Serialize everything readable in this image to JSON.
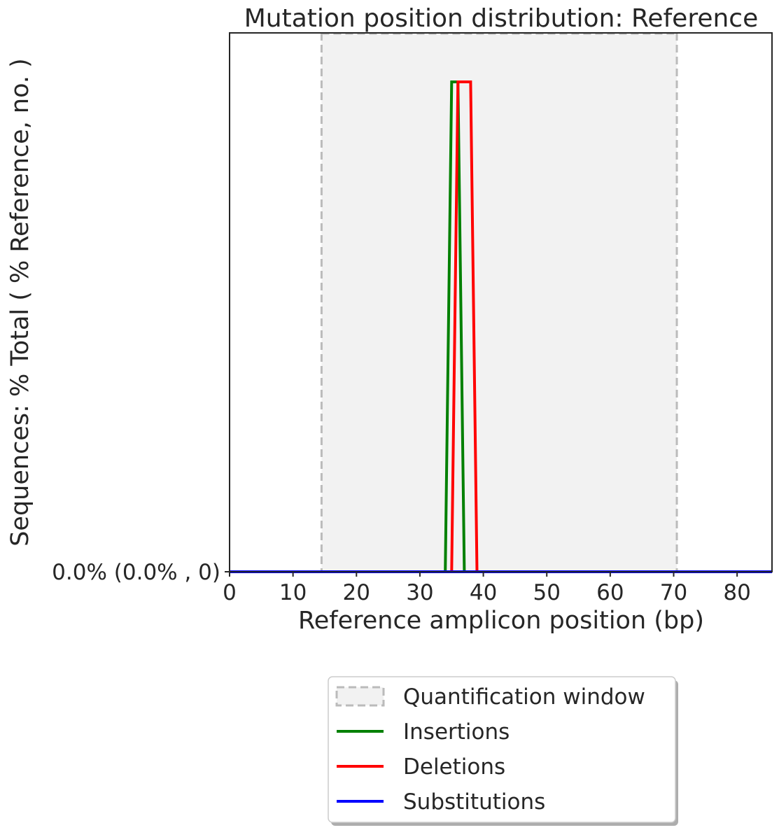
{
  "chart_data": {
    "type": "line",
    "title": "Mutation position distribution: Reference",
    "xlabel": "Reference amplicon position (bp)",
    "ylabel": "Sequences: % Total ( % Reference, no. )",
    "xlim": [
      0,
      85.5
    ],
    "ylim": [
      0,
      1.1
    ],
    "x_ticks": [
      0,
      10,
      20,
      30,
      40,
      50,
      60,
      70,
      80
    ],
    "y_ticks": [
      {
        "value": 0,
        "label": "0.0% (0.0% , 0)"
      }
    ],
    "grid": false,
    "legend_position": "bottom-center",
    "quantification_window": {
      "name": "Quantification window",
      "x_start": 14.5,
      "x_end": 70.5,
      "edge_color": "#bbbbbb",
      "fill_color": "#f2f2f2"
    },
    "series": [
      {
        "name": "Insertions",
        "color": "#008000",
        "x": [
          0,
          34,
          35,
          36,
          37,
          85.5
        ],
        "y": [
          0,
          0,
          1,
          1,
          0,
          0
        ]
      },
      {
        "name": "Deletions",
        "color": "#ff0000",
        "x": [
          0,
          35,
          36,
          37,
          38,
          39,
          85.5
        ],
        "y": [
          0,
          0,
          1,
          1,
          1,
          0,
          0
        ]
      },
      {
        "name": "Substitutions",
        "color": "#0000ff",
        "x": [
          0,
          85.5
        ],
        "y": [
          0,
          0
        ]
      }
    ]
  }
}
